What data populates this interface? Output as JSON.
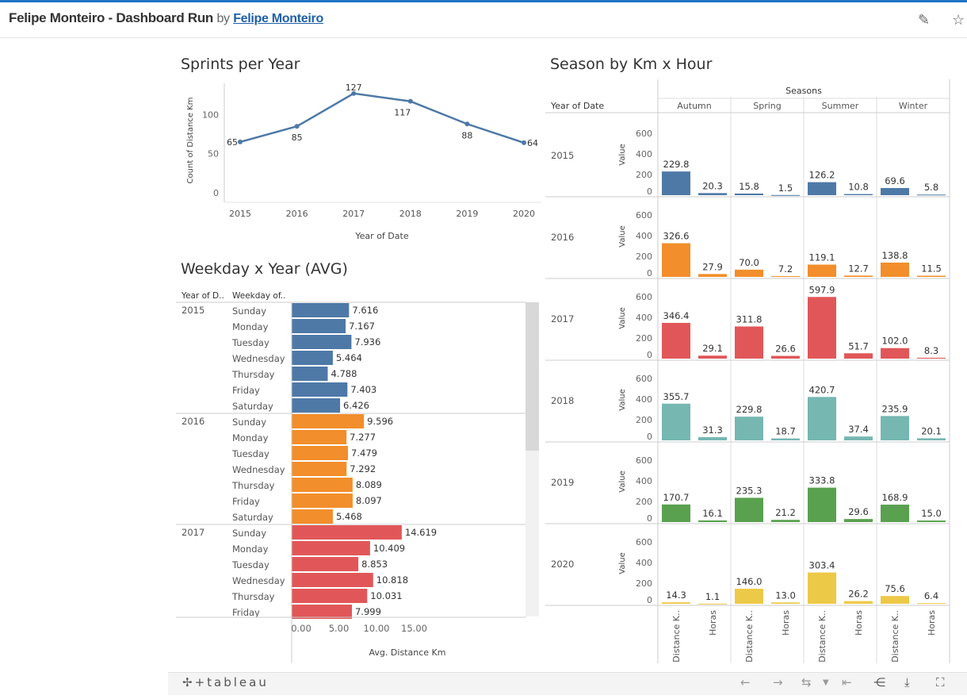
{
  "header": {
    "title": "Felipe Monteiro - Dashboard Run",
    "by": "by",
    "author": "Felipe Monteiro",
    "icons": [
      "edit-icon",
      "star-icon"
    ]
  },
  "footer": {
    "logo": "+tableau",
    "icons": [
      "undo-icon",
      "redo-icon",
      "revert-icon",
      "dropdown-icon",
      "reset-icon",
      "share-icon",
      "download-icon",
      "fullscreen-icon"
    ]
  },
  "colors": {
    "2015": "#4e79a7",
    "2016": "#f28e2b",
    "2017": "#e15759",
    "2018": "#76b7b2",
    "2019": "#59a14f",
    "2020": "#edc948"
  },
  "chart_data": [
    {
      "type": "line",
      "title": "Sprints per Year",
      "xlabel": "Year of Date",
      "ylabel": "Count of Distance Km",
      "x": [
        "2015",
        "2016",
        "2017",
        "2018",
        "2019",
        "2020"
      ],
      "values": [
        65,
        85,
        127,
        117,
        88,
        64
      ],
      "data_labels": [
        "65",
        "85",
        "127",
        "117",
        "88",
        "64"
      ],
      "yticks": [
        "0",
        "50",
        "100"
      ],
      "ylim": [
        0,
        140
      ],
      "color": "#4e79a7"
    },
    {
      "type": "bar",
      "title": "Weekday x Year (AVG)",
      "orientation": "horizontal",
      "col_headers": [
        "Year of D..",
        "Weekday of.."
      ],
      "xlabel": "Avg. Distance Km",
      "xticks": [
        "0.00",
        "5.00",
        "10.00",
        "15.00"
      ],
      "xlim": [
        0,
        18
      ],
      "groups": [
        {
          "year": "2015",
          "rows": [
            {
              "day": "Sunday",
              "value": 7.616,
              "label": "7.616"
            },
            {
              "day": "Monday",
              "value": 7.167,
              "label": "7.167"
            },
            {
              "day": "Tuesday",
              "value": 7.936,
              "label": "7.936"
            },
            {
              "day": "Wednesday",
              "value": 5.464,
              "label": "5.464"
            },
            {
              "day": "Thursday",
              "value": 4.788,
              "label": "4.788"
            },
            {
              "day": "Friday",
              "value": 7.403,
              "label": "7.403"
            },
            {
              "day": "Saturday",
              "value": 6.426,
              "label": "6.426"
            }
          ]
        },
        {
          "year": "2016",
          "rows": [
            {
              "day": "Sunday",
              "value": 9.596,
              "label": "9.596"
            },
            {
              "day": "Monday",
              "value": 7.277,
              "label": "7.277"
            },
            {
              "day": "Tuesday",
              "value": 7.479,
              "label": "7.479"
            },
            {
              "day": "Wednesday",
              "value": 7.292,
              "label": "7.292"
            },
            {
              "day": "Thursday",
              "value": 8.089,
              "label": "8.089"
            },
            {
              "day": "Friday",
              "value": 8.097,
              "label": "8.097"
            },
            {
              "day": "Saturday",
              "value": 5.468,
              "label": "5.468"
            }
          ]
        },
        {
          "year": "2017",
          "rows": [
            {
              "day": "Sunday",
              "value": 14.619,
              "label": "14.619"
            },
            {
              "day": "Monday",
              "value": 10.409,
              "label": "10.409"
            },
            {
              "day": "Tuesday",
              "value": 8.853,
              "label": "8.853"
            },
            {
              "day": "Wednesday",
              "value": 10.818,
              "label": "10.818"
            },
            {
              "day": "Thursday",
              "value": 10.031,
              "label": "10.031"
            },
            {
              "day": "Friday",
              "value": 7.999,
              "label": "7.999"
            }
          ]
        }
      ]
    },
    {
      "type": "bar",
      "title": "Season by Km x Hour",
      "row_header": "Year of Date",
      "col_header": "Seasons",
      "seasons": [
        "Autumn",
        "Spring",
        "Summer",
        "Winter"
      ],
      "measures": [
        "Distance K..",
        "Horas"
      ],
      "ylabel": "Value",
      "yticks": [
        "0",
        "200",
        "400",
        "600"
      ],
      "ylim": [
        0,
        700
      ],
      "rows": [
        {
          "year": "2015",
          "values": [
            229.8,
            20.3,
            15.8,
            1.5,
            126.2,
            10.8,
            69.6,
            5.8
          ],
          "labels": [
            "229.8",
            "20.3",
            "15.8",
            "1.5",
            "126.2",
            "10.8",
            "69.6",
            "5.8"
          ]
        },
        {
          "year": "2016",
          "values": [
            326.6,
            27.9,
            70.0,
            7.2,
            119.1,
            12.7,
            138.8,
            11.5
          ],
          "labels": [
            "326.6",
            "27.9",
            "70.0",
            "7.2",
            "119.1",
            "12.7",
            "138.8",
            "11.5"
          ]
        },
        {
          "year": "2017",
          "values": [
            346.4,
            29.1,
            311.8,
            26.6,
            597.9,
            51.7,
            102.0,
            8.3
          ],
          "labels": [
            "346.4",
            "29.1",
            "311.8",
            "26.6",
            "597.9",
            "51.7",
            "102.0",
            "8.3"
          ]
        },
        {
          "year": "2018",
          "values": [
            355.7,
            31.3,
            229.8,
            18.7,
            420.7,
            37.4,
            235.9,
            20.1
          ],
          "labels": [
            "355.7",
            "31.3",
            "229.8",
            "18.7",
            "420.7",
            "37.4",
            "235.9",
            "20.1"
          ]
        },
        {
          "year": "2019",
          "values": [
            170.7,
            16.1,
            235.3,
            21.2,
            333.8,
            29.6,
            168.9,
            15.0
          ],
          "labels": [
            "170.7",
            "16.1",
            "235.3",
            "21.2",
            "333.8",
            "29.6",
            "168.9",
            "15.0"
          ]
        },
        {
          "year": "2020",
          "values": [
            14.3,
            1.1,
            146.0,
            13.0,
            303.4,
            26.2,
            75.6,
            6.4
          ],
          "labels": [
            "14.3",
            "1.1",
            "146.0",
            "13.0",
            "303.4",
            "26.2",
            "75.6",
            "6.4"
          ]
        }
      ]
    }
  ]
}
